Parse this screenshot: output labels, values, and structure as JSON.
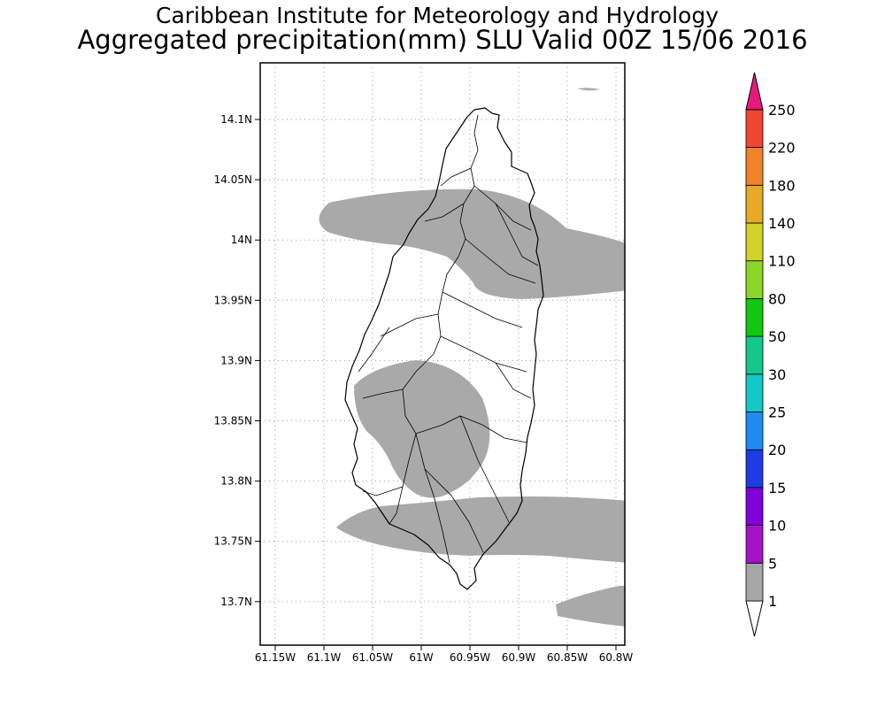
{
  "header": {
    "title_line1": "Caribbean Institute for Meteorology and Hydrology",
    "title_line2": "Aggregated precipitation(mm) SLU Valid 00Z 15/06 2016"
  },
  "map": {
    "lat_labels": [
      "14.1N",
      "14.05N",
      "14N",
      "13.95N",
      "13.9N",
      "13.85N",
      "13.8N",
      "13.75N",
      "13.7N"
    ],
    "lat_values": [
      14.1,
      14.05,
      14.0,
      13.95,
      13.9,
      13.85,
      13.8,
      13.75,
      13.7
    ],
    "lon_labels": [
      "61.15W",
      "61.1W",
      "61.05W",
      "61W",
      "60.95W",
      "60.9W",
      "60.85W",
      "60.8W"
    ],
    "lon_values": [
      -61.15,
      -61.1,
      -61.05,
      -61.0,
      -60.95,
      -60.9,
      -60.85,
      -60.8
    ],
    "grid": true,
    "grid_style": "dotted",
    "precip_fill_color": "#a9a9a9",
    "precip_category": "1-5 mm"
  },
  "colorbar": {
    "labels": [
      "1",
      "5",
      "10",
      "15",
      "20",
      "25",
      "30",
      "50",
      "80",
      "110",
      "140",
      "180",
      "220",
      "250"
    ],
    "colors": [
      "#a6a6a6",
      "#a612c7",
      "#7f00d9",
      "#1e3ce6",
      "#1e8cf0",
      "#14c8c8",
      "#14c88c",
      "#10c810",
      "#8cd628",
      "#d2d228",
      "#e6aa28",
      "#f08228",
      "#f04632",
      "#e6197d"
    ],
    "below_color": "#ffffff"
  }
}
